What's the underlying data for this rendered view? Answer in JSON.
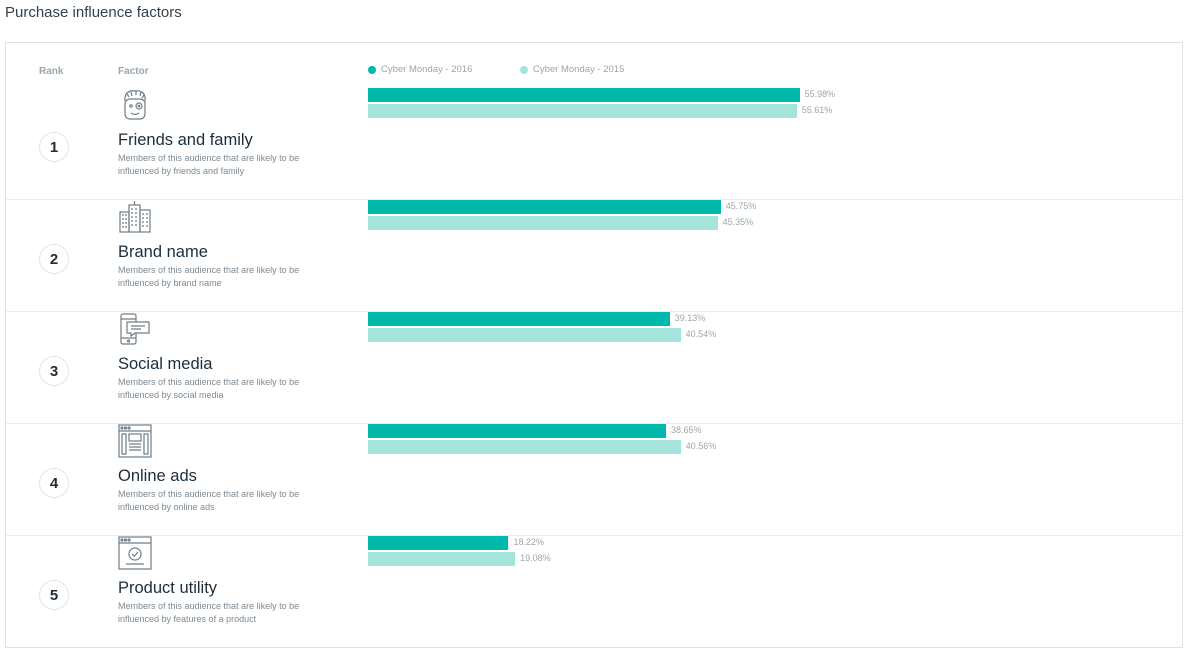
{
  "page_title": "Purchase influence factors",
  "headers": {
    "rank": "Rank",
    "factor": "Factor"
  },
  "colors": {
    "series_2016": "#00b8ac",
    "series_2015": "#a4e4dd",
    "icon": "#6f7d87"
  },
  "chart_data": {
    "type": "bar",
    "orientation": "horizontal",
    "categories": [
      "Friends and family",
      "Brand name",
      "Social media",
      "Online ads",
      "Product utility"
    ],
    "series": [
      {
        "name": "Cyber Monday - 2016",
        "values": [
          55.98,
          45.75,
          39.13,
          38.65,
          18.22
        ],
        "labels": [
          "55.98%",
          "45.75%",
          "39.13%",
          "38.65%",
          "18.22%"
        ]
      },
      {
        "name": "Cyber Monday - 2015",
        "values": [
          55.61,
          45.35,
          40.54,
          40.56,
          19.08
        ],
        "labels": [
          "55.61%",
          "45.35%",
          "40.54%",
          "40.56%",
          "19.08%"
        ]
      }
    ],
    "value_unit": "%",
    "xlim": [
      0,
      100
    ],
    "legend_position": "top",
    "grid": false
  },
  "rows": [
    {
      "rank": "1",
      "name": "Friends and family",
      "desc": "Members of this audience that are likely to be influenced by friends and family",
      "icon": "person-face-icon"
    },
    {
      "rank": "2",
      "name": "Brand name",
      "desc": "Members of this audience that are likely to be influenced by brand name",
      "icon": "buildings-icon"
    },
    {
      "rank": "3",
      "name": "Social media",
      "desc": "Members of this audience that are likely to be influenced by social media",
      "icon": "phone-chat-icon"
    },
    {
      "rank": "4",
      "name": "Online ads",
      "desc": "Members of this audience that are likely to be influenced by online ads",
      "icon": "browser-ads-icon"
    },
    {
      "rank": "5",
      "name": "Product utility",
      "desc": "Members of this audience that are likely to be influenced by features of a product",
      "icon": "browser-check-icon"
    }
  ]
}
